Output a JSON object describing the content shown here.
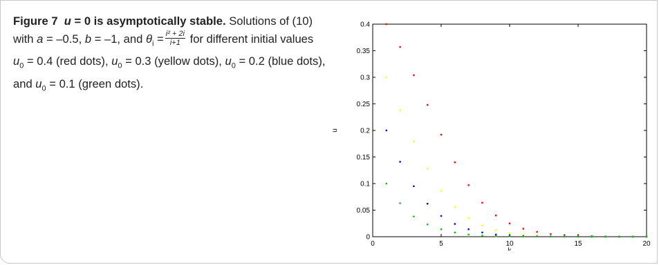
{
  "caption": {
    "figure_label": "Figure 7",
    "u_var": "u",
    "title_rest": "= 0 is asymptotically stable.",
    "t1": "Solutions of (10) with ",
    "a_var": "a",
    "a_val": "= –0.5, ",
    "b_var": "b",
    "b_val": "= –1, and ",
    "theta_var": "θ",
    "theta_sub": "i",
    "eq": "=",
    "frac_num": "i² + 2i",
    "frac_den": "i+1",
    "t2": " for different initial values ",
    "u0_1": " = 0.4 (red dots), ",
    "u0_2": " = 0.3 (yellow dots), ",
    "u0_3": " = 0.2 (blue dots), and ",
    "u0_4": " = 0.1 (green dots).",
    "sub0": "0"
  },
  "chart_data": {
    "type": "scatter",
    "xlabel": "k",
    "ylabel": "u",
    "xlim": [
      0,
      20
    ],
    "ylim": [
      0,
      0.4
    ],
    "xticks": [
      0,
      5,
      10,
      15,
      20
    ],
    "yticks": [
      0,
      0.05,
      0.1,
      0.15,
      0.2,
      0.25,
      0.3,
      0.35,
      0.4
    ],
    "grid": false,
    "x": [
      1,
      2,
      3,
      4,
      5,
      6,
      7,
      8,
      9,
      10,
      11,
      12,
      13,
      14,
      15,
      16,
      17,
      18,
      19,
      20
    ],
    "series": [
      {
        "color": "#ff0000",
        "values": [
          0.4,
          0.357,
          0.304,
          0.248,
          0.192,
          0.14,
          0.097,
          0.064,
          0.04,
          0.025,
          0.015,
          0.009,
          0.005,
          0.003,
          0.002,
          0.001,
          0.0005,
          0.0003,
          0.0002,
          0.0001
        ]
      },
      {
        "color": "#ffff00",
        "values": [
          0.3,
          0.238,
          0.179,
          0.128,
          0.086,
          0.056,
          0.035,
          0.021,
          0.012,
          0.007,
          0.004,
          0.002,
          0.001,
          0.0006,
          0.0003,
          0.0002,
          0.0001,
          0.0001,
          0.0,
          0.0
        ]
      },
      {
        "color": "#0000ff",
        "values": [
          0.2,
          0.141,
          0.095,
          0.062,
          0.039,
          0.024,
          0.014,
          0.008,
          0.004,
          0.002,
          0.001,
          0.0006,
          0.0003,
          0.0002,
          0.0001,
          0.0,
          0.0,
          0.0,
          0.0,
          0.0
        ]
      },
      {
        "color": "#00cc00",
        "values": [
          0.1,
          0.063,
          0.038,
          0.023,
          0.014,
          0.008,
          0.004,
          0.002,
          0.001,
          0.0006,
          0.0003,
          0.0002,
          0.0001,
          0.0,
          0.0,
          0.0,
          0.0,
          0.0,
          0.0,
          0.0
        ]
      }
    ]
  }
}
